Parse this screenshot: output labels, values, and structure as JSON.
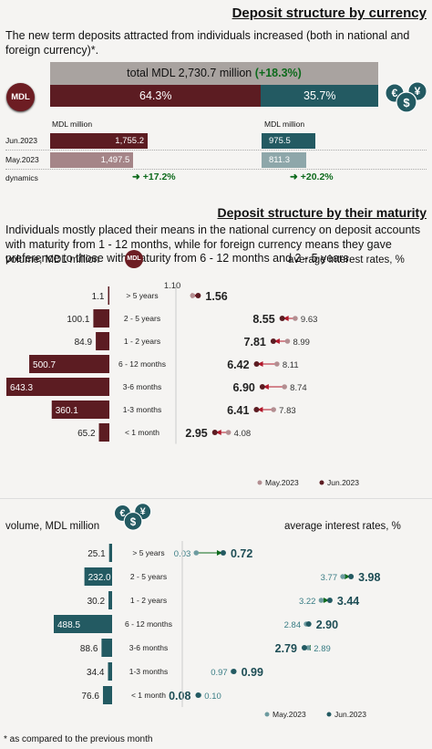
{
  "header": {
    "title": "Deposit structure  by currency",
    "intro": "The new term deposits attracted from individuals increased (both in national and foreign currency)*."
  },
  "currency": {
    "total_prefix": "total MDL 2,730.7 million",
    "total_change": "(+18.3%)",
    "mdl_share": "64.3%",
    "fx_share": "35.7%",
    "mdl_badge": "MDL",
    "mdl_unit": "MDL million",
    "fx_unit": "MDL million",
    "row_labels": [
      "Jun.2023",
      "May.2023",
      "dynamics"
    ],
    "mdl_values": [
      "1,755.2",
      "1,497.5"
    ],
    "fx_values": [
      "975.5",
      "811.3"
    ],
    "mdl_dynamics": "+17.2%",
    "fx_dynamics": "+20.2%",
    "colors": {
      "mdl_jun": "#5c1c22",
      "mdl_may": "#a58588",
      "fx_jun": "#235a62",
      "fx_may": "#8ea7aa",
      "growth": "#0d6a1c"
    }
  },
  "maturity": {
    "title": "Deposit structure by their maturity",
    "intro": "Individuals mostly placed their means in the national currency on deposit accounts with maturity from 1 - 12 months, while for  foreign currency means they gave preference to those with maturity from 6 - 12 months and 2 - 5 years.",
    "mdl_volume_header": "volume, MDL million",
    "mdl_badge": "MDL",
    "mdl_rates_header": "average interest rates, %",
    "fx_volume_header": "volume, MDL million",
    "fx_rates_header": "average interest rates, %",
    "legend_may": "May.2023",
    "legend_jun": "Jun.2023"
  },
  "chart_data": [
    {
      "type": "bar",
      "title": "volume, MDL million",
      "categories": [
        "> 5 years",
        "2 - 5 years",
        "1 - 2 years",
        "6 - 12 months",
        "3-6 months",
        "1-3 months",
        "< 1 month"
      ],
      "values": [
        1.1,
        100.1,
        84.9,
        500.7,
        643.3,
        360.1,
        65.2
      ],
      "labels": [
        "1.1",
        "100.1",
        "84.9",
        "500.7",
        "643.3",
        "360.1",
        "65.2"
      ],
      "color": "#5c1c22"
    },
    {
      "type": "scatter",
      "title": "average interest rates, %",
      "categories": [
        "> 5 years",
        "2 - 5 years",
        "1 - 2 years",
        "6 - 12 months",
        "3-6 months",
        "1-3 months",
        "< 1 month"
      ],
      "series": [
        {
          "name": "May.2023",
          "values": [
            1.1,
            9.63,
            8.99,
            8.11,
            8.74,
            7.83,
            4.08
          ],
          "labels": [
            "1.10",
            "9.63",
            "8.99",
            "8.11",
            "8.74",
            "7.83",
            "4.08"
          ],
          "color": "#b38e91"
        },
        {
          "name": "Jun.2023",
          "values": [
            1.56,
            8.55,
            7.81,
            6.42,
            6.9,
            6.41,
            2.95
          ],
          "labels": [
            "1.56",
            "8.55",
            "7.81",
            "6.42",
            "6.90",
            "6.41",
            "2.95"
          ],
          "color": "#5c1c22"
        }
      ],
      "arrow_color": "#b2182b"
    },
    {
      "type": "bar",
      "title": "volume, MDL million",
      "categories": [
        "> 5 years",
        "2 - 5 years",
        "1 - 2 years",
        "6 - 12 months",
        "3-6 months",
        "1-3 months",
        "< 1 month"
      ],
      "values": [
        25.1,
        232.0,
        30.2,
        488.5,
        88.6,
        34.4,
        76.6
      ],
      "labels": [
        "25.1",
        "232.0",
        "30.2",
        "488.5",
        "88.6",
        "34.4",
        "76.6"
      ],
      "color": "#235a62"
    },
    {
      "type": "scatter",
      "title": "average interest rates, %",
      "categories": [
        "> 5 years",
        "2 - 5 years",
        "1 - 2 years",
        "6 - 12 months",
        "3-6 months",
        "1-3 months",
        "< 1 month"
      ],
      "series": [
        {
          "name": "May.2023",
          "values": [
            0.03,
            3.77,
            3.22,
            2.84,
            2.89,
            0.97,
            0.1
          ],
          "labels": [
            "0.03",
            "3.77",
            "3.22",
            "2.84",
            "2.89",
            "0.97",
            "0.10"
          ],
          "color": "#6d9ba0"
        },
        {
          "name": "Jun.2023",
          "values": [
            0.72,
            3.98,
            3.44,
            2.9,
            2.79,
            0.99,
            0.08
          ],
          "labels": [
            "0.72",
            "3.98",
            "3.44",
            "2.90",
            "2.79",
            "0.99",
            "0.08"
          ],
          "color": "#235a62"
        }
      ],
      "arrow_color": "#0d6a1c"
    }
  ],
  "footnote": "* as compared to the previous month"
}
